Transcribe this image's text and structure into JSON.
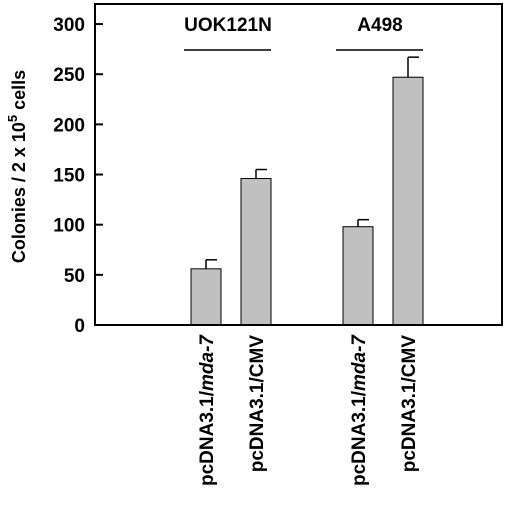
{
  "chart_data": {
    "type": "bar",
    "ylabel": {
      "main": "Colonies / 2 x 10",
      "sup": "5",
      "tail": " cells"
    },
    "ylim": [
      0,
      320
    ],
    "yticks": [
      0,
      50,
      100,
      150,
      200,
      250,
      300
    ],
    "grid": false,
    "groups": [
      {
        "label": "UOK121N",
        "categories": [
          0,
          1
        ]
      },
      {
        "label": "A498",
        "categories": [
          2,
          3
        ]
      }
    ],
    "categories": [
      {
        "prefix": "pcDNA3.1/",
        "italic": "mda-7",
        "suffix": ""
      },
      {
        "prefix": "pcDNA3.1/",
        "italic": "",
        "suffix": "CMV"
      },
      {
        "prefix": "pcDNA3.1/",
        "italic": "mda-7",
        "suffix": ""
      },
      {
        "prefix": "pcDNA3.1/",
        "italic": "",
        "suffix": "CMV"
      }
    ],
    "values": [
      56,
      146,
      98,
      247
    ],
    "errors": [
      9,
      9,
      7,
      20
    ],
    "bar_color": "#c0c0c0"
  }
}
